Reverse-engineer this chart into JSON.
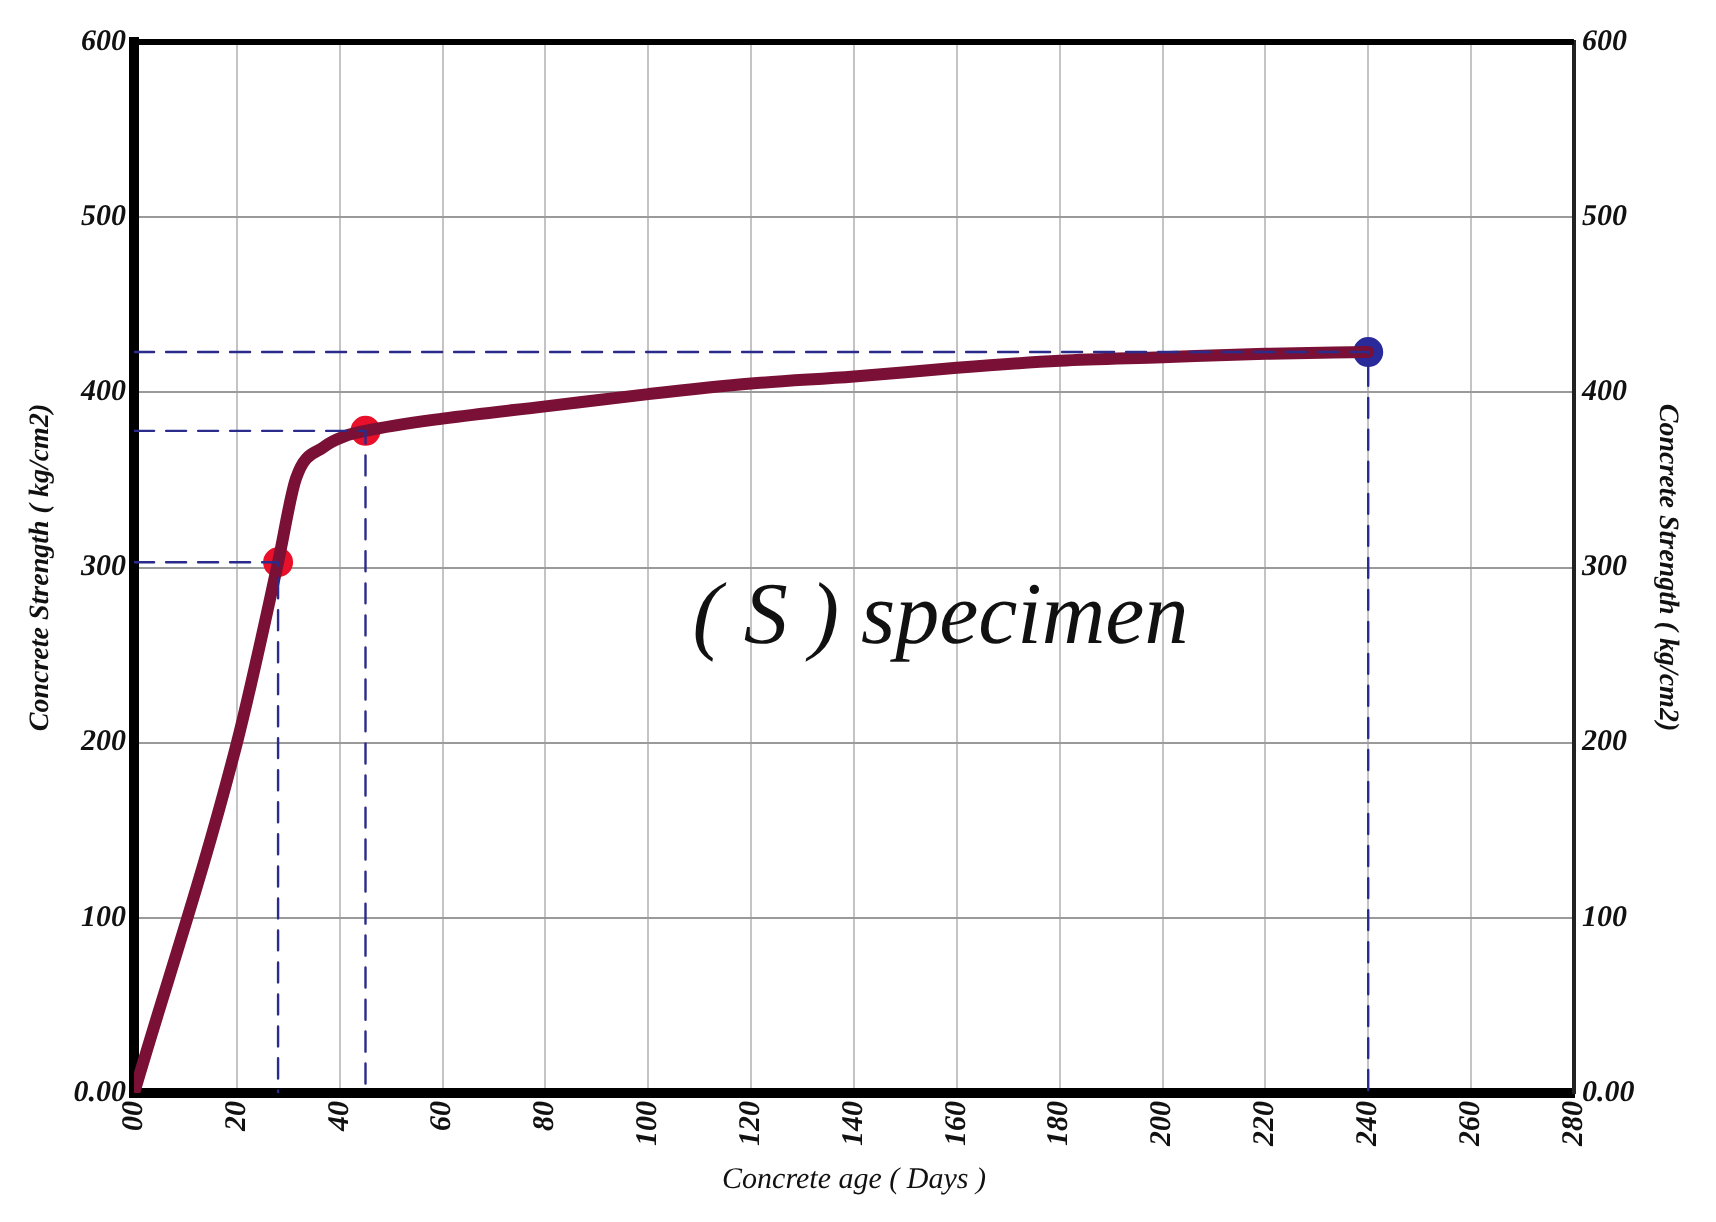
{
  "chart_data": {
    "type": "line",
    "xlabel": "Concrete age ( Days )",
    "ylabel": "Concrete Strength ( kg/cm2)",
    "y2label": "Concrete Strength ( kg/cm2)",
    "annotations": [
      "( S ) specimen"
    ],
    "xlim": [
      0,
      280
    ],
    "xticks": [
      {
        "value": 0,
        "label": "00"
      },
      20,
      40,
      60,
      80,
      100,
      120,
      140,
      160,
      180,
      200,
      220,
      240,
      260,
      280
    ],
    "ylim": [
      0,
      600
    ],
    "yticks": [
      {
        "value": 0,
        "label": "0.00"
      },
      100,
      200,
      300,
      400,
      500,
      600
    ],
    "y2lim": [
      0,
      600
    ],
    "y2ticks": [
      {
        "value": 0,
        "label": "0.00"
      },
      100,
      200,
      300,
      400,
      500,
      600
    ],
    "grid": true,
    "legend": false,
    "series": [
      {
        "color": "#2b2b8c",
        "line_style": "dashed",
        "marker": "none",
        "x": [
          0,
          28,
          28
        ],
        "values": [
          303,
          303,
          0
        ]
      },
      {
        "color": "#2b2b8c",
        "line_style": "dashed",
        "marker": "none",
        "x": [
          0,
          45,
          45
        ],
        "values": [
          378,
          378,
          0
        ]
      },
      {
        "color": "#2b2b8c",
        "line_style": "dashed",
        "marker": "none",
        "x": [
          0,
          240,
          240
        ],
        "values": [
          423,
          423,
          0
        ]
      },
      {
        "color": "#7a1035",
        "line_style": "solid",
        "marker": "none",
        "x": [
          0,
          20,
          28,
          31.5,
          37,
          41,
          45,
          60,
          80,
          100,
          120,
          140,
          160,
          180,
          200,
          220,
          240
        ],
        "values": [
          0,
          200,
          303,
          351,
          369,
          375,
          378,
          385,
          392,
          399,
          405,
          409,
          414,
          418,
          420,
          422,
          423
        ]
      },
      {
        "type": "scatter",
        "marker": "circle",
        "x": [
          28,
          45,
          240
        ],
        "values": [
          303,
          378,
          423
        ],
        "colors": [
          "#e8102a",
          "#e8102a",
          "#2a2a9a"
        ]
      }
    ]
  }
}
